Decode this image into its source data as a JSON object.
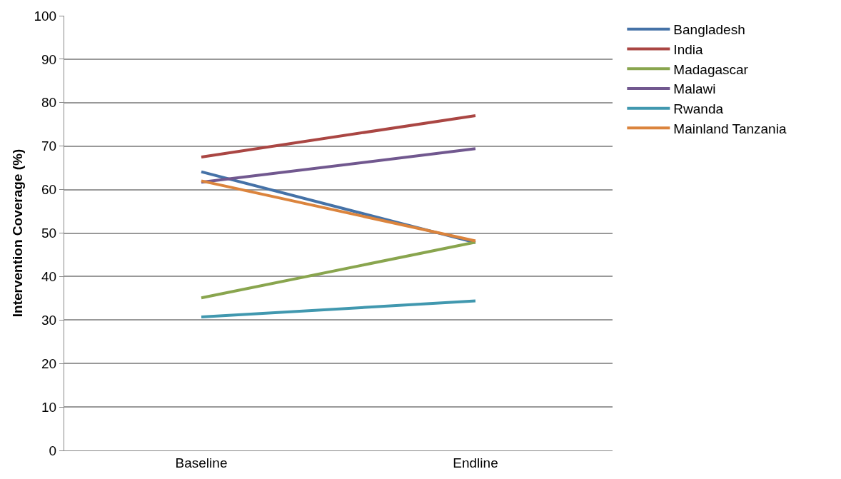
{
  "chart_data": {
    "type": "line",
    "ylabel": "Intervention Coverage (%)",
    "categories": [
      "Baseline",
      "Endline"
    ],
    "series": [
      {
        "name": "Bangladesh",
        "color": "#4572a7",
        "values": [
          64.1,
          47.8
        ]
      },
      {
        "name": "India",
        "color": "#aa4643",
        "values": [
          67.5,
          77.0
        ]
      },
      {
        "name": "Madagascar",
        "color": "#89a54e",
        "values": [
          35.1,
          47.9
        ]
      },
      {
        "name": "Malawi",
        "color": "#71588f",
        "values": [
          61.7,
          69.4
        ]
      },
      {
        "name": "Rwanda",
        "color": "#4198af",
        "values": [
          30.7,
          34.4
        ]
      },
      {
        "name": "Mainland Tanzania",
        "color": "#db843d",
        "values": [
          62.0,
          48.2
        ]
      }
    ],
    "ylim": [
      0,
      100
    ],
    "yticks": [
      0,
      10,
      20,
      30,
      40,
      50,
      60,
      70,
      80,
      90,
      100
    ],
    "grid": "y",
    "legend": "right",
    "marker": "none",
    "line_style": "solid"
  }
}
